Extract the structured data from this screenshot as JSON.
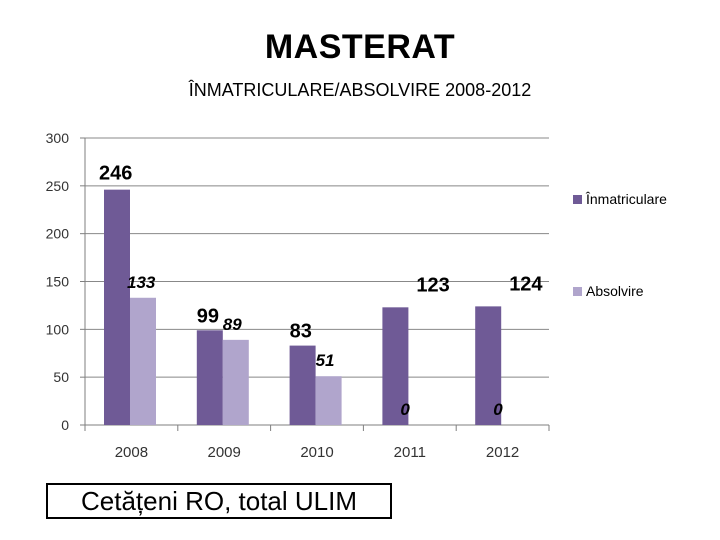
{
  "page": {
    "title": "MASTERAT",
    "subtitle": "ÎNMATRICULARE/ABSOLVIRE  2008-2012",
    "footnote": "Cetățeni RO,  total ULIM"
  },
  "colors": {
    "inmatriculare": "#6f5a96",
    "absolvire": "#b0a5cc",
    "axis": "#7f7f7f",
    "gridline": "#888888"
  },
  "chart_data": {
    "type": "bar",
    "title": "MASTERAT",
    "subtitle": "ÎNMATRICULARE/ABSOLVIRE  2008-2012",
    "categories": [
      "2008",
      "2009",
      "2010",
      "2011",
      "2012"
    ],
    "series": [
      {
        "name": "Înmatriculare",
        "values": [
          246,
          99,
          83,
          123,
          124
        ],
        "labels": [
          "246",
          "99",
          "83",
          "123",
          "124"
        ]
      },
      {
        "name": "Absolvire",
        "values": [
          133,
          89,
          51,
          0,
          0
        ],
        "labels": [
          "133",
          "89",
          "51",
          "0",
          "0"
        ]
      }
    ],
    "yticks": [
      "0",
      "50",
      "100",
      "150",
      "200",
      "250",
      "300"
    ],
    "ylim": [
      0,
      300
    ],
    "grid": true,
    "legend": "right"
  }
}
